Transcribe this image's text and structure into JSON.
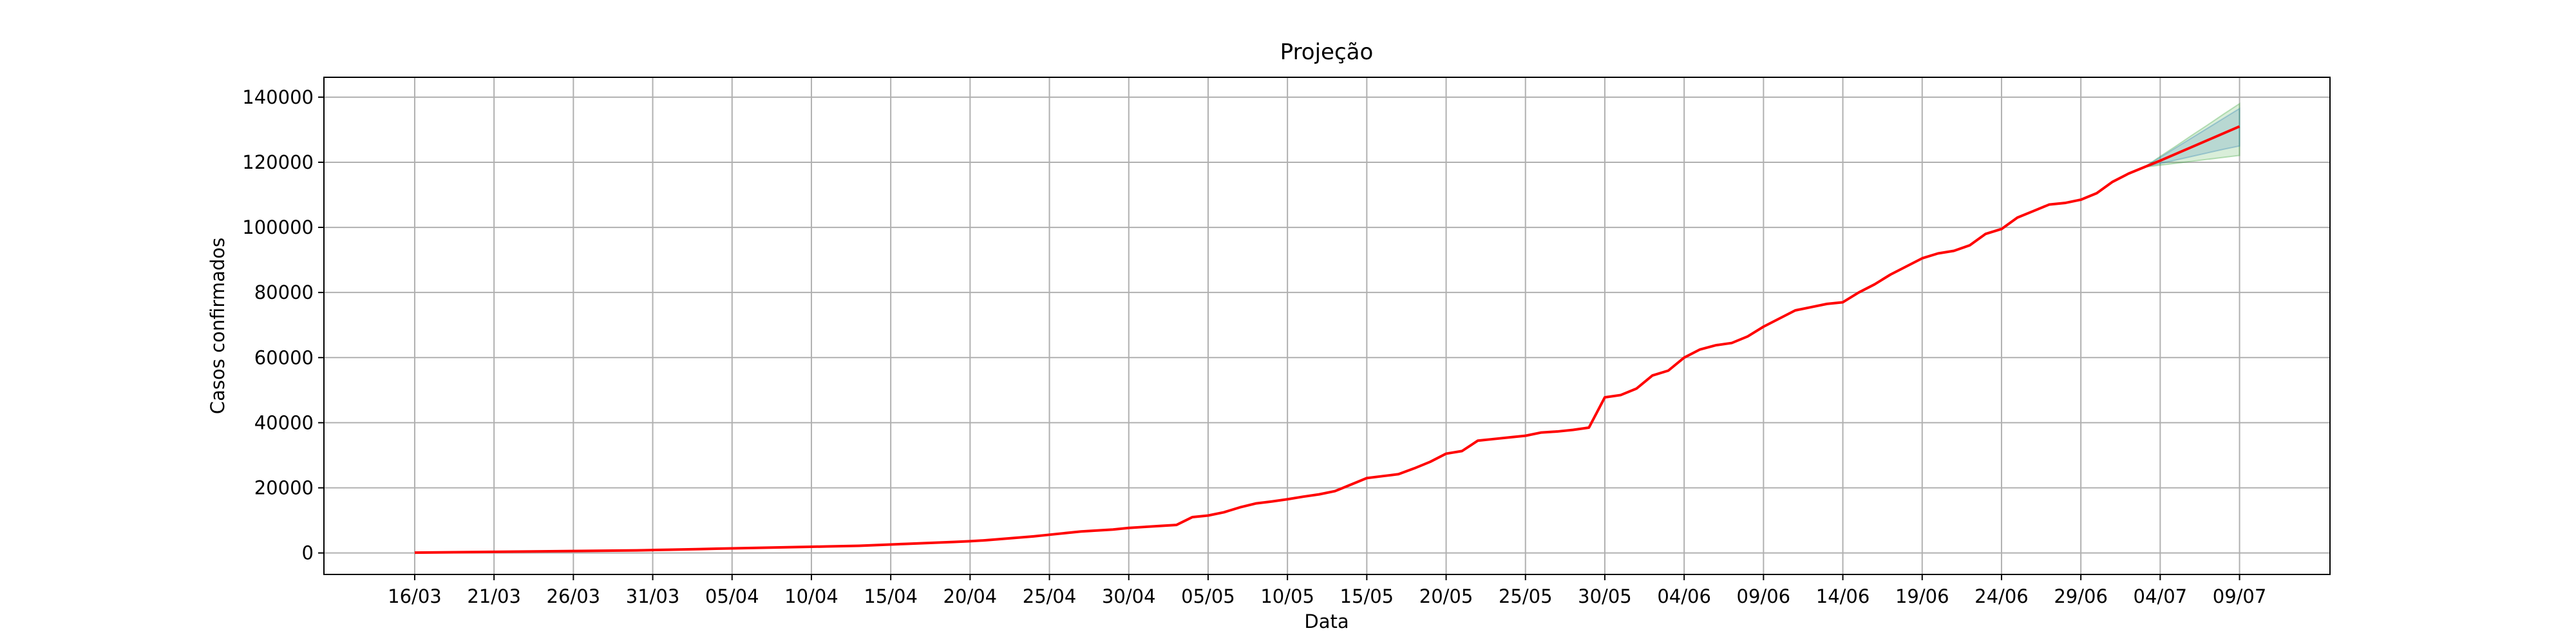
{
  "chart_data": {
    "type": "line",
    "title": "Projeção",
    "xlabel": "Data",
    "ylabel": "Casos confirmados",
    "categories": [
      "16/03",
      null,
      null,
      null,
      null,
      "21/03",
      null,
      null,
      null,
      null,
      "26/03",
      null,
      null,
      null,
      null,
      "31/03",
      null,
      null,
      null,
      null,
      "05/04",
      null,
      null,
      null,
      null,
      "10/04",
      null,
      null,
      null,
      null,
      "15/04",
      null,
      null,
      null,
      null,
      "20/04",
      null,
      null,
      null,
      null,
      "25/04",
      null,
      null,
      null,
      null,
      "30/04",
      null,
      null,
      null,
      null,
      "05/05",
      null,
      null,
      null,
      null,
      "10/05",
      null,
      null,
      null,
      null,
      "15/05",
      null,
      null,
      null,
      null,
      "20/05",
      null,
      null,
      null,
      null,
      "25/05",
      null,
      null,
      null,
      null,
      "30/05",
      null,
      null,
      null,
      null,
      "04/06",
      null,
      null,
      null,
      null,
      "09/06",
      null,
      null,
      null,
      null,
      "14/06",
      null,
      null,
      null,
      null,
      "19/06",
      null,
      null,
      null,
      null,
      "24/06",
      null,
      null,
      null,
      null,
      "29/06",
      null,
      null,
      null,
      null,
      "04/07",
      null,
      null,
      null,
      null,
      "09/07"
    ],
    "series": [
      {
        "color": "#ff0000",
        "values": [
          100,
          150,
          200,
          250,
          300,
          350,
          400,
          450,
          500,
          550,
          600,
          650,
          700,
          750,
          800,
          900,
          1000,
          1100,
          1200,
          1300,
          1400,
          1500,
          1600,
          1700,
          1800,
          1900,
          2000,
          2100,
          2200,
          2400,
          2600,
          2800,
          3000,
          3200,
          3400,
          3600,
          3900,
          4300,
          4700,
          5100,
          5600,
          6100,
          6600,
          6900,
          7200,
          7700,
          8000,
          8300,
          8600,
          11000,
          11500,
          12500,
          14000,
          15200,
          15800,
          16500,
          17300,
          18000,
          19000,
          21000,
          23000,
          23600,
          24200,
          26000,
          28000,
          30500,
          31300,
          34500,
          35000,
          35500,
          36000,
          37000,
          37300,
          37800,
          38500,
          47800,
          48500,
          50500,
          54500,
          56000,
          60000,
          62500,
          63800,
          64500,
          66500,
          69500,
          72000,
          74500,
          75500,
          76500,
          77000,
          80000,
          82500,
          85500,
          88000,
          90500,
          92000,
          92800,
          94500,
          98000,
          99500,
          103000,
          105000,
          107000,
          107500,
          108500,
          110500,
          114000,
          116500,
          118500,
          120500,
          122600,
          124700,
          126800,
          128900,
          131000
        ]
      }
    ],
    "bands": [
      {
        "color": "#2ca02c",
        "lower": [
          null,
          null,
          null,
          null,
          null,
          null,
          null,
          null,
          null,
          null,
          null,
          null,
          null,
          null,
          null,
          null,
          null,
          null,
          null,
          null,
          null,
          null,
          null,
          null,
          null,
          null,
          null,
          null,
          null,
          null,
          null,
          null,
          null,
          null,
          null,
          null,
          null,
          null,
          null,
          null,
          null,
          null,
          null,
          null,
          null,
          null,
          null,
          null,
          null,
          null,
          null,
          null,
          null,
          null,
          null,
          null,
          null,
          null,
          null,
          null,
          null,
          null,
          null,
          null,
          null,
          null,
          null,
          null,
          null,
          null,
          null,
          null,
          null,
          null,
          null,
          null,
          null,
          null,
          null,
          null,
          null,
          null,
          null,
          null,
          null,
          null,
          null,
          null,
          null,
          null,
          null,
          null,
          null,
          null,
          null,
          null,
          null,
          null,
          null,
          null,
          null,
          null,
          null,
          null,
          null,
          null,
          null,
          null,
          null,
          118500,
          119100,
          119700,
          120300,
          120900,
          121500,
          122100
        ],
        "upper": [
          null,
          null,
          null,
          null,
          null,
          null,
          null,
          null,
          null,
          null,
          null,
          null,
          null,
          null,
          null,
          null,
          null,
          null,
          null,
          null,
          null,
          null,
          null,
          null,
          null,
          null,
          null,
          null,
          null,
          null,
          null,
          null,
          null,
          null,
          null,
          null,
          null,
          null,
          null,
          null,
          null,
          null,
          null,
          null,
          null,
          null,
          null,
          null,
          null,
          null,
          null,
          null,
          null,
          null,
          null,
          null,
          null,
          null,
          null,
          null,
          null,
          null,
          null,
          null,
          null,
          null,
          null,
          null,
          null,
          null,
          null,
          null,
          null,
          null,
          null,
          null,
          null,
          null,
          null,
          null,
          null,
          null,
          null,
          null,
          null,
          null,
          null,
          null,
          null,
          null,
          null,
          null,
          null,
          null,
          null,
          null,
          null,
          null,
          null,
          null,
          null,
          null,
          null,
          null,
          null,
          null,
          null,
          null,
          null,
          118500,
          121800,
          125000,
          128300,
          131500,
          134800,
          138000
        ]
      },
      {
        "color": "#1f77b4",
        "lower": [
          null,
          null,
          null,
          null,
          null,
          null,
          null,
          null,
          null,
          null,
          null,
          null,
          null,
          null,
          null,
          null,
          null,
          null,
          null,
          null,
          null,
          null,
          null,
          null,
          null,
          null,
          null,
          null,
          null,
          null,
          null,
          null,
          null,
          null,
          null,
          null,
          null,
          null,
          null,
          null,
          null,
          null,
          null,
          null,
          null,
          null,
          null,
          null,
          null,
          null,
          null,
          null,
          null,
          null,
          null,
          null,
          null,
          null,
          null,
          null,
          null,
          null,
          null,
          null,
          null,
          null,
          null,
          null,
          null,
          null,
          null,
          null,
          null,
          null,
          null,
          null,
          null,
          null,
          null,
          null,
          null,
          null,
          null,
          null,
          null,
          null,
          null,
          null,
          null,
          null,
          null,
          null,
          null,
          null,
          null,
          null,
          null,
          null,
          null,
          null,
          null,
          null,
          null,
          null,
          null,
          null,
          null,
          null,
          null,
          118500,
          119600,
          120700,
          121800,
          122900,
          124000,
          125000
        ],
        "upper": [
          null,
          null,
          null,
          null,
          null,
          null,
          null,
          null,
          null,
          null,
          null,
          null,
          null,
          null,
          null,
          null,
          null,
          null,
          null,
          null,
          null,
          null,
          null,
          null,
          null,
          null,
          null,
          null,
          null,
          null,
          null,
          null,
          null,
          null,
          null,
          null,
          null,
          null,
          null,
          null,
          null,
          null,
          null,
          null,
          null,
          null,
          null,
          null,
          null,
          null,
          null,
          null,
          null,
          null,
          null,
          null,
          null,
          null,
          null,
          null,
          null,
          null,
          null,
          null,
          null,
          null,
          null,
          null,
          null,
          null,
          null,
          null,
          null,
          null,
          null,
          null,
          null,
          null,
          null,
          null,
          null,
          null,
          null,
          null,
          null,
          null,
          null,
          null,
          null,
          null,
          null,
          null,
          null,
          null,
          null,
          null,
          null,
          null,
          null,
          null,
          null,
          null,
          null,
          null,
          null,
          null,
          null,
          null,
          null,
          118500,
          121500,
          124500,
          127500,
          130500,
          133500,
          136500
        ]
      }
    ],
    "ylim": [
      -6600,
      146100
    ],
    "yticks": [
      0,
      20000,
      40000,
      60000,
      80000,
      100000,
      120000,
      140000
    ],
    "grid": true
  }
}
